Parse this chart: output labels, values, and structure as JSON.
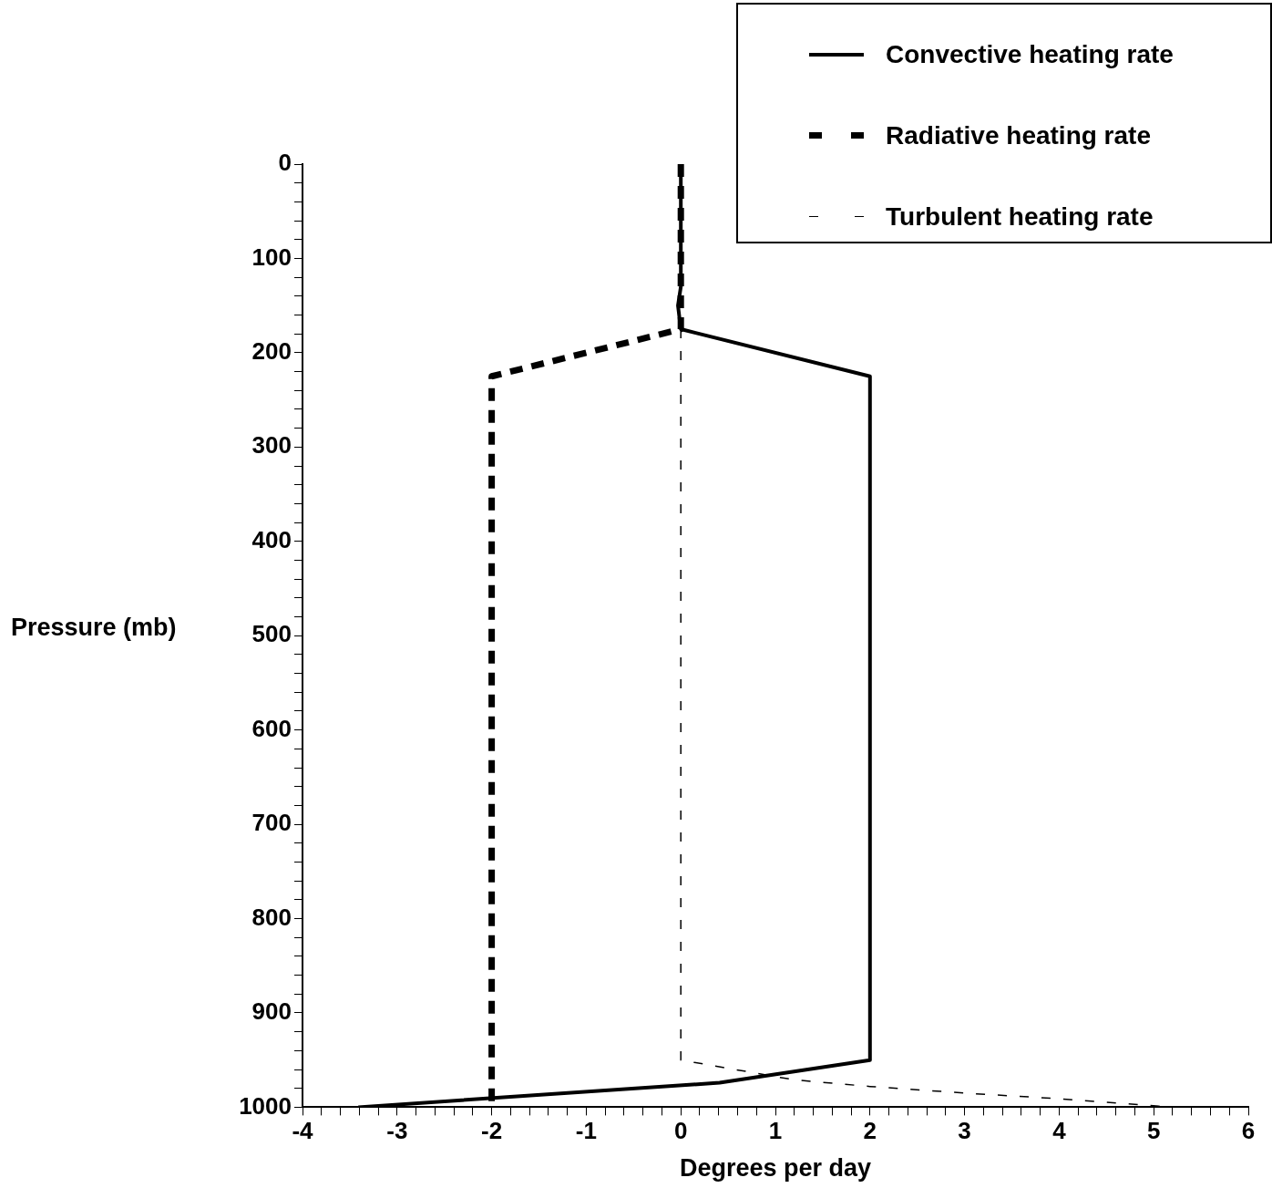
{
  "chart_data": {
    "type": "line",
    "xlabel": "Degrees per day",
    "ylabel": "Pressure (mb)",
    "legend": "top right",
    "grid": false,
    "marker": "none",
    "xlim": [
      -4,
      6
    ],
    "ylim": [
      1000,
      0
    ],
    "xticks": [
      -4,
      {
        "value": -3.8,
        "label": null
      },
      {
        "value": -3.6,
        "label": null
      },
      {
        "value": -3.4,
        "label": null
      },
      {
        "value": -3.2,
        "label": null
      },
      -3,
      {
        "value": -2.8,
        "label": null
      },
      {
        "value": -2.6,
        "label": null
      },
      {
        "value": -2.4,
        "label": null
      },
      {
        "value": -2.2,
        "label": null
      },
      -2,
      {
        "value": -1.8,
        "label": null
      },
      {
        "value": -1.6,
        "label": null
      },
      {
        "value": -1.4,
        "label": null
      },
      {
        "value": -1.2,
        "label": null
      },
      -1,
      {
        "value": -0.8,
        "label": null
      },
      {
        "value": -0.6,
        "label": null
      },
      {
        "value": -0.4,
        "label": null
      },
      {
        "value": -0.2,
        "label": null
      },
      0,
      {
        "value": 0.2,
        "label": null
      },
      {
        "value": 0.4,
        "label": null
      },
      {
        "value": 0.6,
        "label": null
      },
      {
        "value": 0.8,
        "label": null
      },
      1,
      {
        "value": 1.2,
        "label": null
      },
      {
        "value": 1.4,
        "label": null
      },
      {
        "value": 1.6,
        "label": null
      },
      {
        "value": 1.8,
        "label": null
      },
      2,
      {
        "value": 2.2,
        "label": null
      },
      {
        "value": 2.4,
        "label": null
      },
      {
        "value": 2.6,
        "label": null
      },
      {
        "value": 2.8,
        "label": null
      },
      3,
      {
        "value": 3.2,
        "label": null
      },
      {
        "value": 3.4,
        "label": null
      },
      {
        "value": 3.6,
        "label": null
      },
      {
        "value": 3.8,
        "label": null
      },
      4,
      {
        "value": 4.2,
        "label": null
      },
      {
        "value": 4.4,
        "label": null
      },
      {
        "value": 4.6,
        "label": null
      },
      {
        "value": 4.8,
        "label": null
      },
      5,
      {
        "value": 5.2,
        "label": null
      },
      {
        "value": 5.4,
        "label": null
      },
      {
        "value": 5.6,
        "label": null
      },
      {
        "value": 5.8,
        "label": null
      },
      6
    ],
    "yticks": [
      0,
      {
        "value": 20,
        "label": null
      },
      {
        "value": 40,
        "label": null
      },
      {
        "value": 60,
        "label": null
      },
      {
        "value": 80,
        "label": null
      },
      100,
      {
        "value": 120,
        "label": null
      },
      {
        "value": 140,
        "label": null
      },
      {
        "value": 160,
        "label": null
      },
      {
        "value": 180,
        "label": null
      },
      200,
      {
        "value": 220,
        "label": null
      },
      {
        "value": 240,
        "label": null
      },
      {
        "value": 260,
        "label": null
      },
      {
        "value": 280,
        "label": null
      },
      300,
      {
        "value": 320,
        "label": null
      },
      {
        "value": 340,
        "label": null
      },
      {
        "value": 360,
        "label": null
      },
      {
        "value": 380,
        "label": null
      },
      400,
      {
        "value": 420,
        "label": null
      },
      {
        "value": 440,
        "label": null
      },
      {
        "value": 460,
        "label": null
      },
      {
        "value": 480,
        "label": null
      },
      500,
      {
        "value": 520,
        "label": null
      },
      {
        "value": 540,
        "label": null
      },
      {
        "value": 560,
        "label": null
      },
      {
        "value": 580,
        "label": null
      },
      600,
      {
        "value": 620,
        "label": null
      },
      {
        "value": 640,
        "label": null
      },
      {
        "value": 660,
        "label": null
      },
      {
        "value": 680,
        "label": null
      },
      700,
      {
        "value": 720,
        "label": null
      },
      {
        "value": 740,
        "label": null
      },
      {
        "value": 760,
        "label": null
      },
      {
        "value": 780,
        "label": null
      },
      800,
      {
        "value": 820,
        "label": null
      },
      {
        "value": 840,
        "label": null
      },
      {
        "value": 860,
        "label": null
      },
      {
        "value": 880,
        "label": null
      },
      900,
      {
        "value": 920,
        "label": null
      },
      {
        "value": 940,
        "label": null
      },
      {
        "value": 960,
        "label": null
      },
      {
        "value": 980,
        "label": null
      },
      1000
    ],
    "series": [
      {
        "name": "Convective heating rate",
        "color": "#000000",
        "line_style": "solid",
        "x": [
          0,
          0,
          -0.03,
          0,
          2,
          2,
          0.41,
          -3.41
        ],
        "values": [
          0,
          130,
          150,
          175,
          225,
          950,
          974,
          1000
        ]
      },
      {
        "name": "Radiative heating rate",
        "color": "#000000",
        "line_style": "dashed",
        "x": [
          0,
          0,
          -2,
          -2
        ],
        "values": [
          0,
          175,
          225,
          1000
        ]
      },
      {
        "name": "Turbulent heating rate",
        "color": "#000000",
        "line_style": "dashed",
        "x": [
          0,
          0,
          1.2,
          2,
          3,
          4,
          5.2
        ],
        "values": [
          175,
          950,
          971,
          978,
          985,
          991,
          1000
        ]
      }
    ]
  }
}
